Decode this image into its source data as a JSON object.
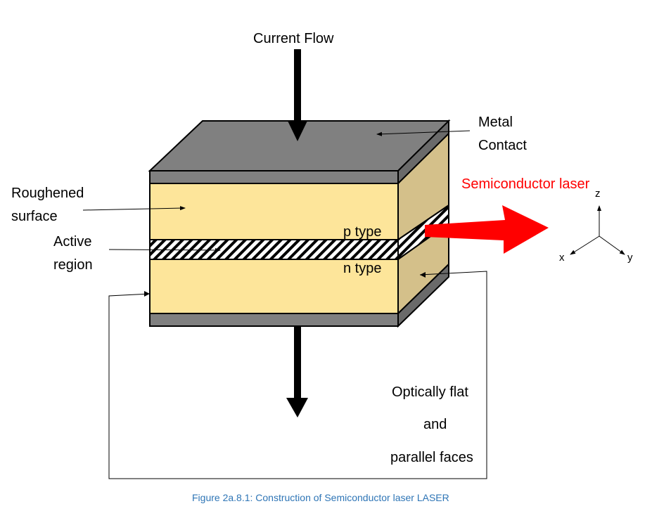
{
  "labels": {
    "current_flow": "Current Flow",
    "metal_line1": "Metal",
    "metal_line2": "Contact",
    "semiconductor_laser": "Semiconductor laser",
    "roughened_line1": "Roughened",
    "roughened_line2": "surface",
    "active_line1": "Active",
    "active_line2": "region",
    "p_type": "p type",
    "n_type": "n type",
    "optical_line1": "Optically flat",
    "optical_line2": "and",
    "optical_line3": "parallel faces"
  },
  "axes": {
    "x": "x",
    "y": "y",
    "z": "z"
  },
  "caption": "Figure 2a.8.1: Construction of Semiconductor laser LASER",
  "colors": {
    "metal": "#808080",
    "metal_edge": "#6a6a6a",
    "semiconductor_front": "#fde59a",
    "semiconductor_side": "#d4c08a",
    "laser_beam": "#ff0000",
    "caption_text": "#2e75b6",
    "laser_label": "#ff0000"
  },
  "icons": {
    "axis_triad": "xyz-axes-icon",
    "laser_beam": "laser-arrow-icon"
  }
}
